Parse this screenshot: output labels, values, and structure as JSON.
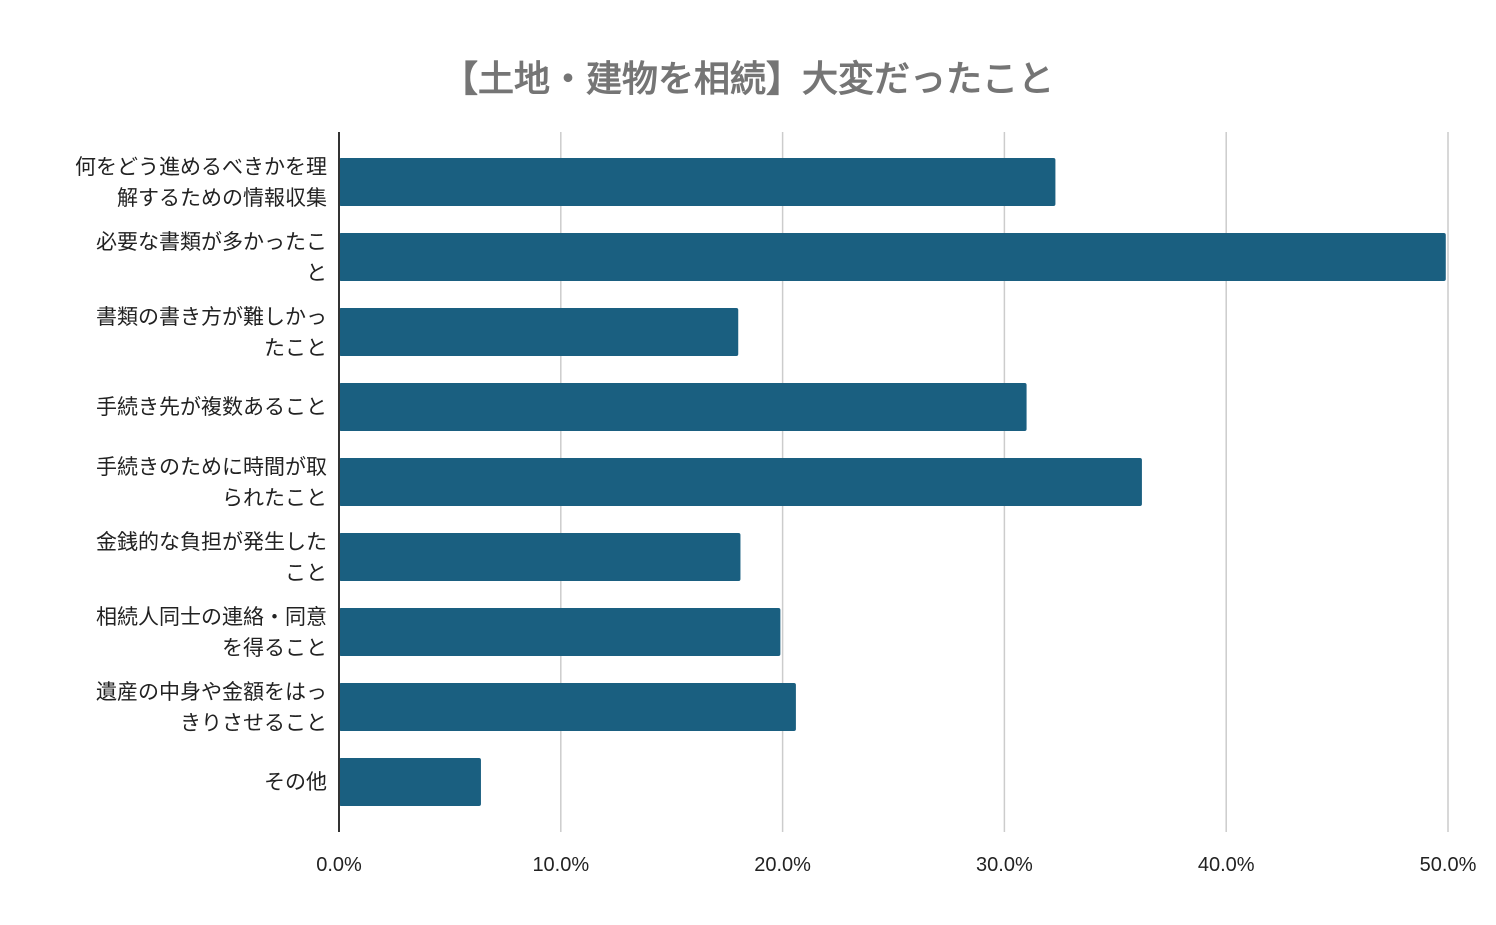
{
  "chart_data": {
    "type": "bar",
    "orientation": "horizontal",
    "title": "【土地・建物を相続】大変だったこと",
    "categories": [
      [
        "何をどう進めるべきかを理",
        "解するための情報収集"
      ],
      [
        "必要な書類が多かったこ",
        "と"
      ],
      [
        "書類の書き方が難しかっ",
        "たこと"
      ],
      [
        "手続き先が複数あること"
      ],
      [
        "手続きのために時間が取",
        "られたこと"
      ],
      [
        "金銭的な負担が発生した",
        "こと"
      ],
      [
        "相続人同士の連絡・同意",
        "を得ること"
      ],
      [
        "遺産の中身や金額をはっ",
        "きりさせること"
      ],
      [
        "その他"
      ]
    ],
    "values": [
      32.3,
      49.9,
      18.0,
      31.0,
      36.2,
      18.1,
      19.9,
      20.6,
      6.4
    ],
    "xlim": [
      0,
      50
    ],
    "xticks": [
      "0.0%",
      "10.0%",
      "20.0%",
      "30.0%",
      "40.0%",
      "50.0%"
    ],
    "xlabel": "",
    "ylabel": "",
    "grid": true,
    "legend": "none",
    "colors": {
      "bar": "#1a5f80",
      "title": "#757575",
      "grid": "#cccccc"
    }
  }
}
